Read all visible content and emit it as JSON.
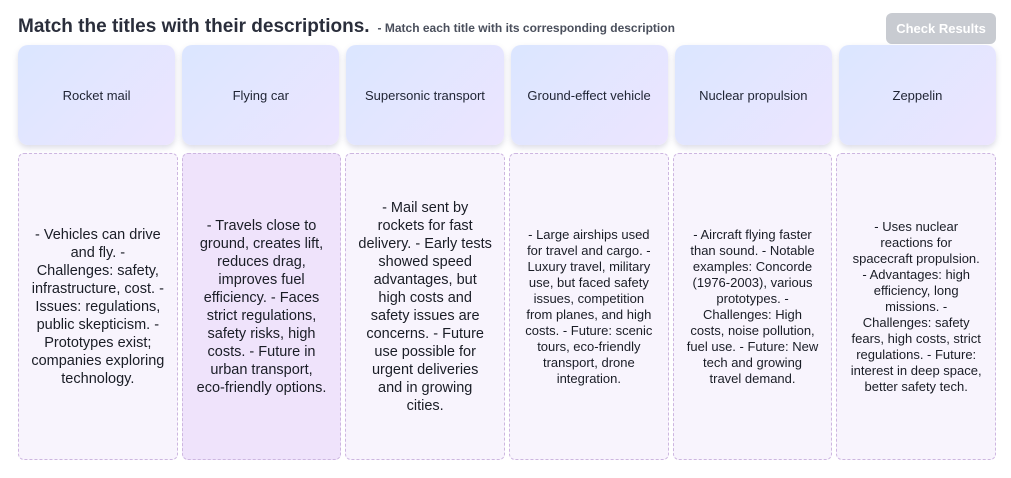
{
  "header": {
    "title": "Match the titles with their descriptions.",
    "subtitle": "- Match each title with its corresponding description"
  },
  "check_button": {
    "label": "Check Results"
  },
  "titles": [
    {
      "label": "Rocket mail"
    },
    {
      "label": "Flying car"
    },
    {
      "label": "Supersonic transport"
    },
    {
      "label": "Ground-effect vehicle"
    },
    {
      "label": "Nuclear propulsion"
    },
    {
      "label": "Zeppelin"
    }
  ],
  "descriptions": [
    {
      "text": "- Vehicles can drive and fly. - Challenges: safety, infrastructure, cost. - Issues: regulations, public skepticism. - Prototypes exist; companies exploring technology."
    },
    {
      "text": "- Travels close to ground, creates lift, reduces drag, improves fuel efficiency. - Faces strict regulations, safety risks, high costs. - Future in urban transport, eco-friendly options."
    },
    {
      "text": "- Mail sent by rockets for fast delivery. - Early tests showed speed advantages, but high costs and safety issues are concerns. - Future use possible for urgent deliveries and in growing cities."
    },
    {
      "text": "- Large airships used for travel and cargo. - Luxury travel, military use, but faced safety issues, competition from planes, and high costs. - Future: scenic tours, eco-friendly transport, drone integration."
    },
    {
      "text": "- Aircraft flying faster than sound. - Notable examples: Concorde (1976-2003), various prototypes. - Challenges: High costs, noise pollution, fuel use. - Future: New tech and growing travel demand."
    },
    {
      "text": "- Uses nuclear reactions for spacecraft propulsion. - Advantages: high efficiency, long missions. - Challenges: safety fears, high costs, strict regulations. - Future: interest in deep space, better safety tech."
    }
  ],
  "colors": {
    "title_card_gradient_start": "#dbe6ff",
    "title_card_gradient_end": "#ece5ff",
    "desc_card_bg": "#f8f4fd",
    "desc_card_active_bg": "#efe3fb",
    "desc_card_border": "#cdb6e0",
    "button_disabled_bg": "#c8cbd1"
  }
}
